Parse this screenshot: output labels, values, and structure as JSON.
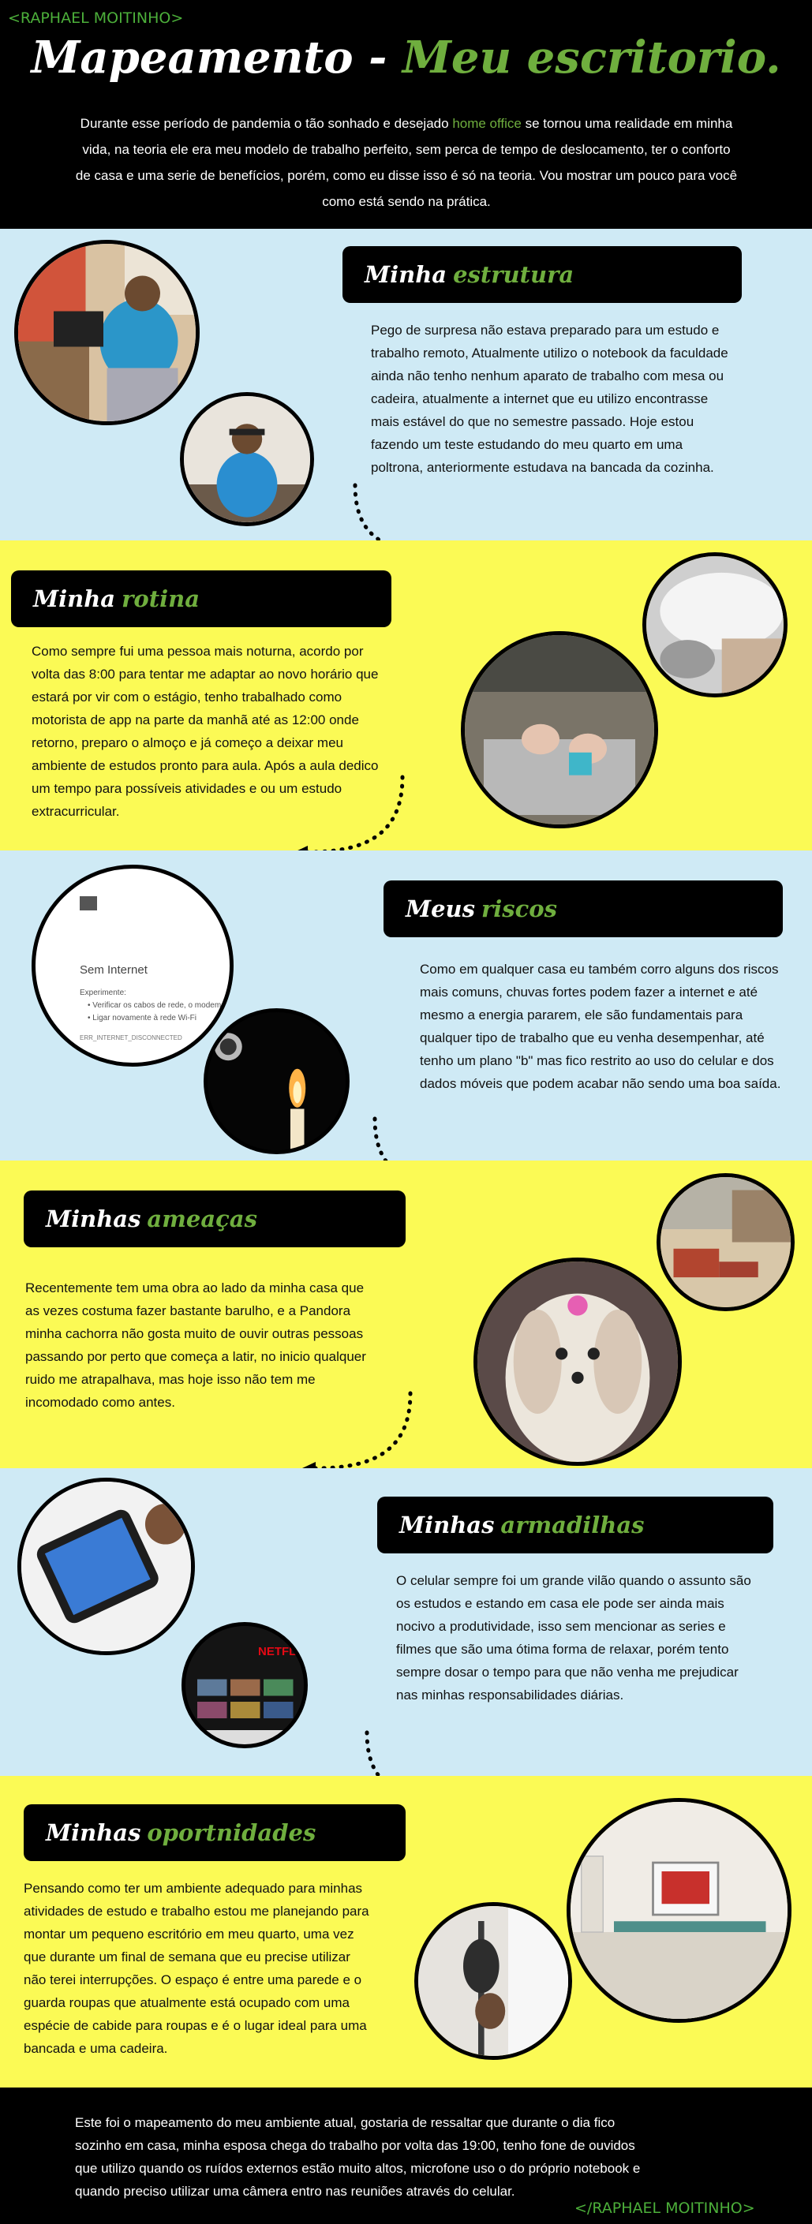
{
  "header": {
    "tag": "<RAPHAEL MOITINHO>",
    "title_part1": "Mapeamento -",
    "title_part2": "Meu escritorio.",
    "intro_part1": "Durante esse período de pandemia o tão sonhado e desejado",
    "intro_highlight": "home office",
    "intro_part2": "se tornou uma realidade em minha vida, na teoria ele era meu modelo de trabalho perfeito, sem perca de tempo de deslocamento, ter o conforto de casa e uma serie de benefícios, porém, como eu disse isso é só na teoria. Vou mostrar um pouco para você como está sendo na prática."
  },
  "sections": [
    {
      "title1": "Minha",
      "title2": "estrutura",
      "text": "Pego de surpresa não estava preparado para um estudo e trabalho remoto, Atualmente utilizo o notebook da faculdade ainda não tenho nenhum aparato de trabalho com mesa ou cadeira, atualmente a internet que eu utilizo encontrasse mais estável do que no semestre passado. Hoje estou fazendo um teste estudando do meu quarto em uma poltrona, anteriormente estudava na bancada da cozinha."
    },
    {
      "title1": "Minha",
      "title2": "rotina",
      "text": "Como sempre fui uma pessoa mais noturna, acordo por volta das 8:00 para tentar me adaptar ao novo horário que estará por vir com o estágio, tenho trabalhado como motorista de app na parte da manhã até as 12:00 onde retorno, preparo o almoço e já começo a deixar meu ambiente de estudos pronto para aula. Após a aula dedico um tempo para possíveis atividades e ou um estudo extracurricular."
    },
    {
      "title1": "Meus",
      "title2": "riscos",
      "text": "Como em qualquer casa eu também corro alguns dos riscos mais comuns, chuvas fortes podem fazer a internet e até mesmo a energia pararem, ele são fundamentais para qualquer tipo de trabalho que eu venha desempenhar, até tenho um plano \"b\" mas fico restrito ao uso do celular e dos dados móveis que podem acabar não sendo uma boa saída."
    },
    {
      "title1": "Minhas",
      "title2": "ameaças",
      "text": "Recentemente tem uma obra ao lado da minha casa que as vezes costuma fazer bastante barulho, e a Pandora minha cachorra não gosta muito de ouvir outras pessoas passando por perto que começa a latir, no inicio qualquer ruido me atrapalhava, mas hoje isso não tem me incomodado como antes."
    },
    {
      "title1": "Minhas",
      "title2": "armadilhas",
      "text": "O celular sempre foi um grande vilão quando o assunto são os estudos e estando em casa ele pode ser ainda mais nocivo a produtividade, isso sem mencionar as series e filmes que são uma ótima forma de relaxar, porém tento sempre dosar o tempo para que não venha me prejudicar nas minhas responsabilidades diárias."
    },
    {
      "title1": "Minhas",
      "title2": "oportnidades",
      "text": "Pensando como ter um ambiente adequado para minhas atividades de estudo e trabalho estou me planejando para montar um pequeno escritório em meu quarto, uma vez que durante um final de semana que eu precise utilizar não terei interrupções. O espaço é entre uma parede e o guarda roupas que atualmente está ocupado com uma espécie de cabide para roupas e é o lugar ideal para uma bancada e uma cadeira."
    }
  ],
  "screen": {
    "title": "Sem Internet",
    "label": "Experimente:",
    "item1": "Verificar os cabos de rede, o modem",
    "item2": "Ligar novamente à rede Wi-Fi",
    "code": "ERR_INTERNET_DISCONNECTED"
  },
  "netflix": "NETFLIX",
  "footer": {
    "text": "Este foi o mapeamento do meu ambiente atual, gostaria de ressaltar que durante o dia fico sozinho em casa, minha esposa chega do trabalho por volta das 19:00, tenho fone de ouvidos que utilizo quando os ruídos externos estão muito altos, microfone uso o do próprio notebook e quando preciso utilizar uma câmera entro nas reuniões através do celular.",
    "tag": "</RAPHAEL MOITINHO>"
  },
  "colors": {
    "blue": "#cfeaf5",
    "yellow": "#fbfa55",
    "green": "#6fae3e",
    "black": "#000000"
  }
}
